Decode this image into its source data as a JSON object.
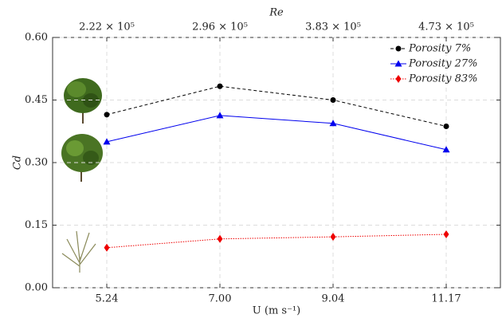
{
  "chart_data": {
    "type": "line",
    "x_label": "U (m s⁻¹)",
    "y_label": "Cd",
    "x2_label": "Re",
    "categories": [
      "5.24",
      "7.00",
      "9.04",
      "11.17"
    ],
    "x2_categories": [
      "2.22 × 10⁵",
      "2.96 × 10⁵",
      "3.83 × 10⁵",
      "4.73 × 10⁵"
    ],
    "ylim": [
      0,
      0.6
    ],
    "yticks": [
      {
        "value": 0,
        "label": "0.00"
      },
      0.15,
      {
        "value": 0.3,
        "label": "0.30"
      },
      0.45,
      {
        "value": 0.6,
        "label": "0.60"
      }
    ],
    "grid": true,
    "legend": "upper right",
    "series": [
      {
        "name": "Porosity 7%",
        "color": "#000000",
        "marker": "circle",
        "linestyle": "dashed",
        "values": [
          0.415,
          0.483,
          0.45,
          0.387
        ]
      },
      {
        "name": "Porosity 27%",
        "color": "#0000ee",
        "marker": "triangle",
        "linestyle": "solid",
        "values": [
          0.35,
          0.413,
          0.394,
          0.331
        ]
      },
      {
        "name": "Porosity 83%",
        "color": "#ee0000",
        "marker": "diamond",
        "linestyle": "dotted",
        "values": [
          0.096,
          0.117,
          0.122,
          0.128
        ]
      }
    ]
  }
}
